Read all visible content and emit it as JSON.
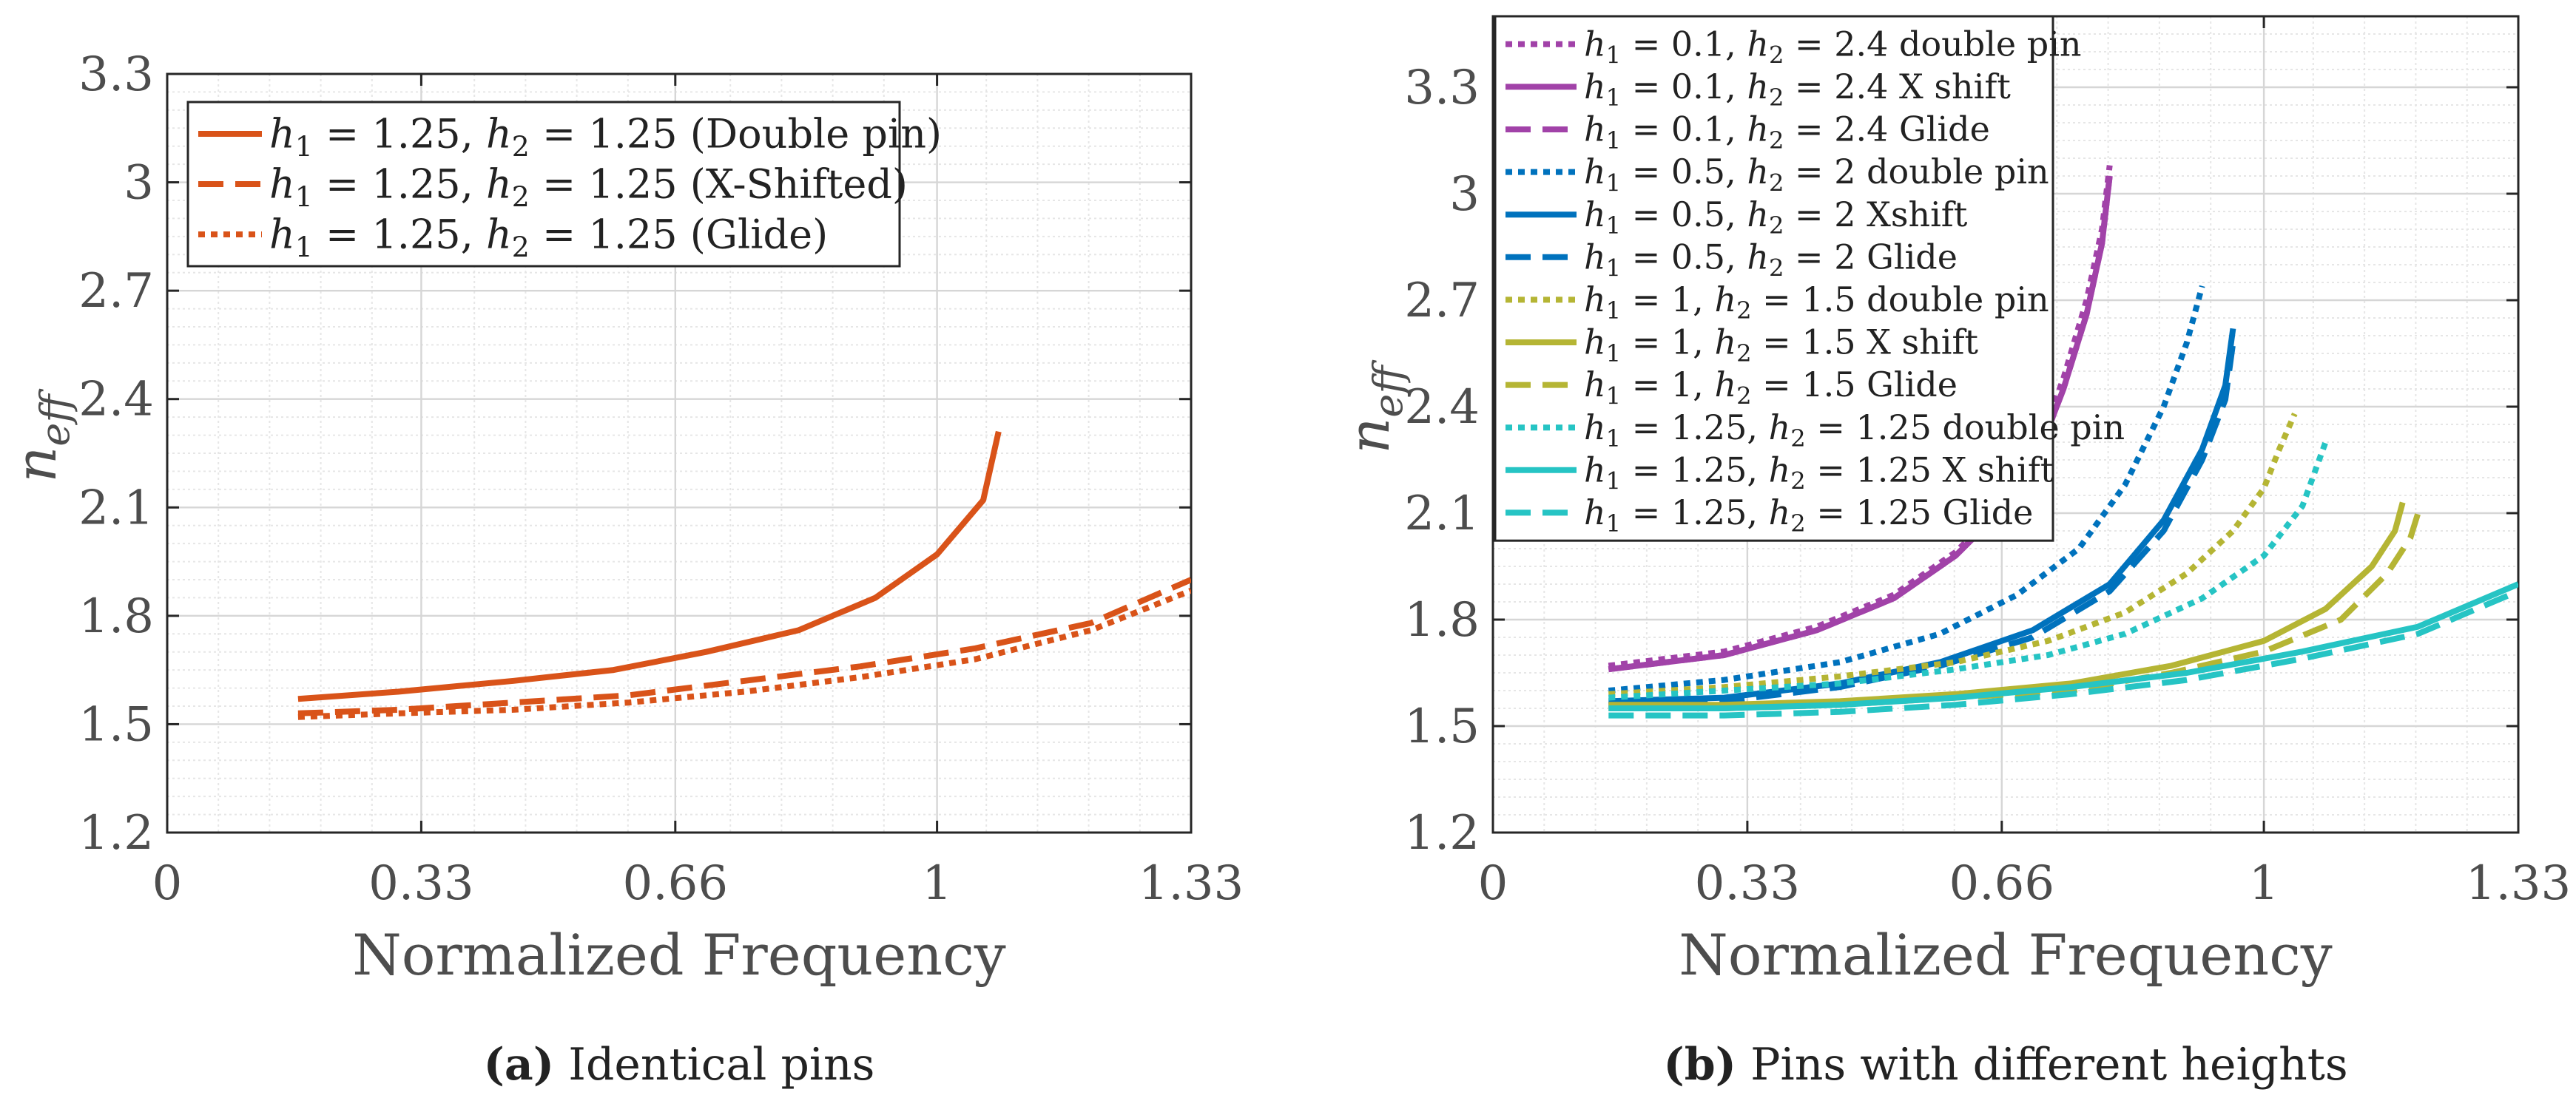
{
  "chart_data": [
    {
      "id": "a",
      "type": "line",
      "caption_letter": "(a)",
      "caption": "Identical pins",
      "xlabel": "Normalized Frequency",
      "ylabel": "n_eff",
      "ylabel_main": "n",
      "ylabel_sub": "eff",
      "xlim": [
        0,
        1.33
      ],
      "ylim": [
        1.2,
        3.3
      ],
      "xticks": [
        0,
        0.33,
        0.66,
        1,
        1.33
      ],
      "xtick_labels": [
        "0",
        "0.33",
        "0.66",
        "1",
        "1.33"
      ],
      "yticks": [
        1.2,
        1.5,
        1.8,
        2.1,
        2.4,
        2.7,
        3,
        3.3
      ],
      "ytick_labels": [
        "1.2",
        "1.5",
        "1.8",
        "2.1",
        "2.4",
        "2.7",
        "3",
        "3.3"
      ],
      "grid": true,
      "legend_position": "top-left",
      "series": [
        {
          "name": "h1 = 1.25, h2 = 1.25 (Double pin)",
          "legend": {
            "h1": "1.25",
            "h2": "1.25",
            "suffix": "(Double pin)"
          },
          "color": "#d95319",
          "style": "solid",
          "x": [
            0.17,
            0.3,
            0.45,
            0.58,
            0.7,
            0.82,
            0.92,
            1.0,
            1.06,
            1.08
          ],
          "y": [
            1.57,
            1.59,
            1.62,
            1.65,
            1.7,
            1.76,
            1.85,
            1.97,
            2.12,
            2.31
          ]
        },
        {
          "name": "h1 = 1.25, h2 = 1.25 (X-Shifted)",
          "legend": {
            "h1": "1.25",
            "h2": "1.25",
            "suffix": "(X-Shifted)"
          },
          "color": "#d95319",
          "style": "dashed",
          "x": [
            0.17,
            0.3,
            0.45,
            0.6,
            0.75,
            0.9,
            1.05,
            1.2,
            1.33
          ],
          "y": [
            1.53,
            1.54,
            1.56,
            1.58,
            1.62,
            1.66,
            1.71,
            1.78,
            1.9
          ]
        },
        {
          "name": "h1 = 1.25, h2 = 1.25 (Glide)",
          "legend": {
            "h1": "1.25",
            "h2": "1.25",
            "suffix": "(Glide)"
          },
          "color": "#d95319",
          "style": "dotted",
          "x": [
            0.17,
            0.3,
            0.45,
            0.6,
            0.75,
            0.9,
            1.05,
            1.2,
            1.33
          ],
          "y": [
            1.52,
            1.53,
            1.54,
            1.56,
            1.59,
            1.63,
            1.68,
            1.76,
            1.87
          ]
        }
      ]
    },
    {
      "id": "b",
      "type": "line",
      "caption_letter": "(b)",
      "caption": "Pins with different heights",
      "xlabel": "Normalized Frequency",
      "ylabel": "n_eff",
      "ylabel_main": "n",
      "ylabel_sub": "eff",
      "xlim": [
        0,
        1.33
      ],
      "ylim": [
        1.2,
        3.5
      ],
      "xticks": [
        0,
        0.33,
        0.66,
        1,
        1.33
      ],
      "xtick_labels": [
        "0",
        "0.33",
        "0.66",
        "1",
        "1.33"
      ],
      "yticks": [
        1.2,
        1.5,
        1.8,
        2.1,
        2.4,
        2.7,
        3,
        3.3
      ],
      "ytick_labels": [
        "1.2",
        "1.5",
        "1.8",
        "2.1",
        "2.4",
        "2.7",
        "3",
        "3.3"
      ],
      "grid": true,
      "legend_position": "top-left",
      "series": [
        {
          "name": "h1 = 0.1, h2 = 2.4 double pin",
          "legend": {
            "h1": "0.1",
            "h2": "2.4",
            "suffix": "double pin"
          },
          "color": "#a142a8",
          "style": "dotted",
          "x": [
            0.15,
            0.3,
            0.42,
            0.52,
            0.6,
            0.66,
            0.71,
            0.74,
            0.77,
            0.79,
            0.8
          ],
          "y": [
            1.67,
            1.71,
            1.78,
            1.87,
            1.99,
            2.12,
            2.3,
            2.48,
            2.7,
            2.9,
            3.08
          ]
        },
        {
          "name": "h1 = 0.1, h2 = 2.4 X shift",
          "legend": {
            "h1": "0.1",
            "h2": "2.4",
            "suffix": "X shift"
          },
          "color": "#a142a8",
          "style": "solid",
          "x": [
            0.15,
            0.3,
            0.42,
            0.52,
            0.6,
            0.66,
            0.71,
            0.74,
            0.77,
            0.79,
            0.8
          ],
          "y": [
            1.66,
            1.7,
            1.77,
            1.86,
            1.98,
            2.11,
            2.28,
            2.45,
            2.66,
            2.86,
            3.05
          ]
        },
        {
          "name": "h1 = 0.1, h2 = 2.4 Glide",
          "legend": {
            "h1": "0.1",
            "h2": "2.4",
            "suffix": "Glide"
          },
          "color": "#a142a8",
          "style": "dashed",
          "x": [
            0.15,
            0.3,
            0.42,
            0.52,
            0.6,
            0.66,
            0.71,
            0.74,
            0.77,
            0.79,
            0.8
          ],
          "y": [
            1.66,
            1.7,
            1.77,
            1.86,
            1.98,
            2.11,
            2.28,
            2.45,
            2.66,
            2.86,
            3.05
          ]
        },
        {
          "name": "h1 = 0.5, h2 = 2 double pin",
          "legend": {
            "h1": "0.5",
            "h2": "2",
            "suffix": "double pin"
          },
          "color": "#0072bd",
          "style": "dotted",
          "x": [
            0.15,
            0.3,
            0.45,
            0.58,
            0.68,
            0.76,
            0.82,
            0.87,
            0.9,
            0.92
          ],
          "y": [
            1.6,
            1.63,
            1.68,
            1.76,
            1.87,
            2.0,
            2.18,
            2.4,
            2.58,
            2.74
          ]
        },
        {
          "name": "h1 = 0.5, h2 = 2 Xshift",
          "legend": {
            "h1": "0.5",
            "h2": "2",
            "suffix": "Xshift"
          },
          "color": "#0072bd",
          "style": "solid",
          "x": [
            0.15,
            0.3,
            0.45,
            0.58,
            0.7,
            0.8,
            0.87,
            0.92,
            0.95,
            0.96
          ],
          "y": [
            1.57,
            1.58,
            1.62,
            1.68,
            1.77,
            1.9,
            2.08,
            2.28,
            2.46,
            2.62
          ]
        },
        {
          "name": "h1 = 0.5, h2 = 2 Glide",
          "legend": {
            "h1": "0.5",
            "h2": "2",
            "suffix": "Glide"
          },
          "color": "#0072bd",
          "style": "dashed",
          "x": [
            0.15,
            0.3,
            0.45,
            0.58,
            0.7,
            0.8,
            0.87,
            0.92,
            0.95,
            0.96
          ],
          "y": [
            1.56,
            1.57,
            1.61,
            1.67,
            1.75,
            1.88,
            2.05,
            2.25,
            2.42,
            2.58
          ]
        },
        {
          "name": "h1 = 1, h2 = 1.5 double pin",
          "legend": {
            "h1": "1",
            "h2": "1.5",
            "suffix": "double pin"
          },
          "color": "#b5b534",
          "style": "dotted",
          "x": [
            0.15,
            0.3,
            0.45,
            0.6,
            0.72,
            0.82,
            0.9,
            0.96,
            1.0,
            1.02,
            1.04
          ],
          "y": [
            1.59,
            1.61,
            1.64,
            1.68,
            1.74,
            1.82,
            1.93,
            2.05,
            2.17,
            2.28,
            2.38
          ]
        },
        {
          "name": "h1 = 1, h2 = 1.5 X shift",
          "legend": {
            "h1": "1",
            "h2": "1.5",
            "suffix": "X shift"
          },
          "color": "#b5b534",
          "style": "solid",
          "x": [
            0.15,
            0.3,
            0.45,
            0.6,
            0.75,
            0.88,
            1.0,
            1.08,
            1.14,
            1.17,
            1.18
          ],
          "y": [
            1.56,
            1.56,
            1.57,
            1.59,
            1.62,
            1.67,
            1.74,
            1.83,
            1.95,
            2.05,
            2.13
          ]
        },
        {
          "name": "h1 = 1, h2 = 1.5 Glide",
          "legend": {
            "h1": "1",
            "h2": "1.5",
            "suffix": "Glide"
          },
          "color": "#b5b534",
          "style": "dashed",
          "x": [
            0.15,
            0.3,
            0.45,
            0.6,
            0.75,
            0.88,
            1.0,
            1.1,
            1.16,
            1.19,
            1.2
          ],
          "y": [
            1.55,
            1.55,
            1.56,
            1.58,
            1.6,
            1.65,
            1.71,
            1.8,
            1.93,
            2.03,
            2.1
          ]
        },
        {
          "name": "h1 = 1.25, h2 = 1.25 double pin",
          "legend": {
            "h1": "1.25",
            "h2": "1.25",
            "suffix": "double pin"
          },
          "color": "#26c4c4",
          "style": "dotted",
          "x": [
            0.15,
            0.3,
            0.45,
            0.6,
            0.72,
            0.82,
            0.92,
            1.0,
            1.05,
            1.08
          ],
          "y": [
            1.58,
            1.6,
            1.62,
            1.66,
            1.7,
            1.76,
            1.86,
            1.98,
            2.12,
            2.3
          ]
        },
        {
          "name": "h1 = 1.25, h2 = 1.25 X shift",
          "legend": {
            "h1": "1.25",
            "h2": "1.25",
            "suffix": "X shift"
          },
          "color": "#26c4c4",
          "style": "solid",
          "x": [
            0.15,
            0.3,
            0.45,
            0.6,
            0.75,
            0.9,
            1.05,
            1.2,
            1.33
          ],
          "y": [
            1.55,
            1.55,
            1.56,
            1.58,
            1.61,
            1.65,
            1.71,
            1.78,
            1.9
          ]
        },
        {
          "name": "h1 = 1.25, h2 = 1.25 Glide",
          "legend": {
            "h1": "1.25",
            "h2": "1.25",
            "suffix": "Glide"
          },
          "color": "#26c4c4",
          "style": "dashed",
          "x": [
            0.15,
            0.3,
            0.45,
            0.6,
            0.75,
            0.9,
            1.05,
            1.2,
            1.33
          ],
          "y": [
            1.53,
            1.53,
            1.54,
            1.56,
            1.59,
            1.63,
            1.69,
            1.76,
            1.88
          ]
        }
      ]
    }
  ]
}
